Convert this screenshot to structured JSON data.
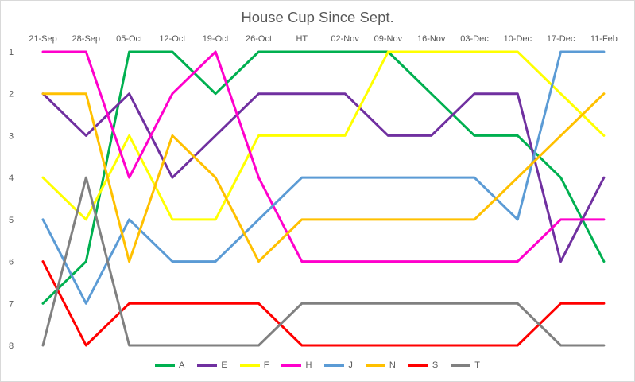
{
  "chart_data": {
    "type": "line",
    "title": "House Cup Since Sept.",
    "categories": [
      "21-Sep",
      "28-Sep",
      "05-Oct",
      "12-Oct",
      "19-Oct",
      "26-Oct",
      "HT",
      "02-Nov",
      "09-Nov",
      "16-Nov",
      "03-Dec",
      "10-Dec",
      "17-Dec",
      "11-Feb"
    ],
    "y_ticks": [
      "1",
      "2",
      "3",
      "4",
      "5",
      "6",
      "7",
      "8"
    ],
    "ylim": [
      1,
      8
    ],
    "y_reversed": true,
    "grid": false,
    "legend_position": "bottom",
    "series": [
      {
        "name": "A",
        "color": "#00b050",
        "values": [
          7,
          6,
          1,
          1,
          2,
          1,
          1,
          1,
          1,
          2,
          3,
          3,
          4,
          6
        ]
      },
      {
        "name": "E",
        "color": "#7030a0",
        "values": [
          2,
          3,
          2,
          4,
          3,
          2,
          2,
          2,
          3,
          3,
          2,
          2,
          6,
          4
        ]
      },
      {
        "name": "F",
        "color": "#ffff00",
        "values": [
          4,
          5,
          3,
          5,
          5,
          3,
          3,
          3,
          1,
          1,
          1,
          1,
          2,
          3
        ]
      },
      {
        "name": "H",
        "color": "#ff00cc",
        "values": [
          1,
          1,
          4,
          2,
          1,
          4,
          6,
          6,
          6,
          6,
          6,
          6,
          5,
          5
        ]
      },
      {
        "name": "J",
        "color": "#5b9bd5",
        "values": [
          5,
          7,
          5,
          6,
          6,
          5,
          4,
          4,
          4,
          4,
          4,
          5,
          1,
          1
        ]
      },
      {
        "name": "N",
        "color": "#ffc000",
        "values": [
          2,
          2,
          6,
          3,
          4,
          6,
          5,
          5,
          5,
          5,
          5,
          4,
          3,
          2
        ]
      },
      {
        "name": "S",
        "color": "#ff0000",
        "values": [
          6,
          8,
          7,
          7,
          7,
          7,
          8,
          8,
          8,
          8,
          8,
          8,
          7,
          7
        ]
      },
      {
        "name": "T",
        "color": "#808080",
        "values": [
          8,
          4,
          8,
          8,
          8,
          8,
          7,
          7,
          7,
          7,
          7,
          7,
          8,
          8
        ]
      }
    ]
  }
}
